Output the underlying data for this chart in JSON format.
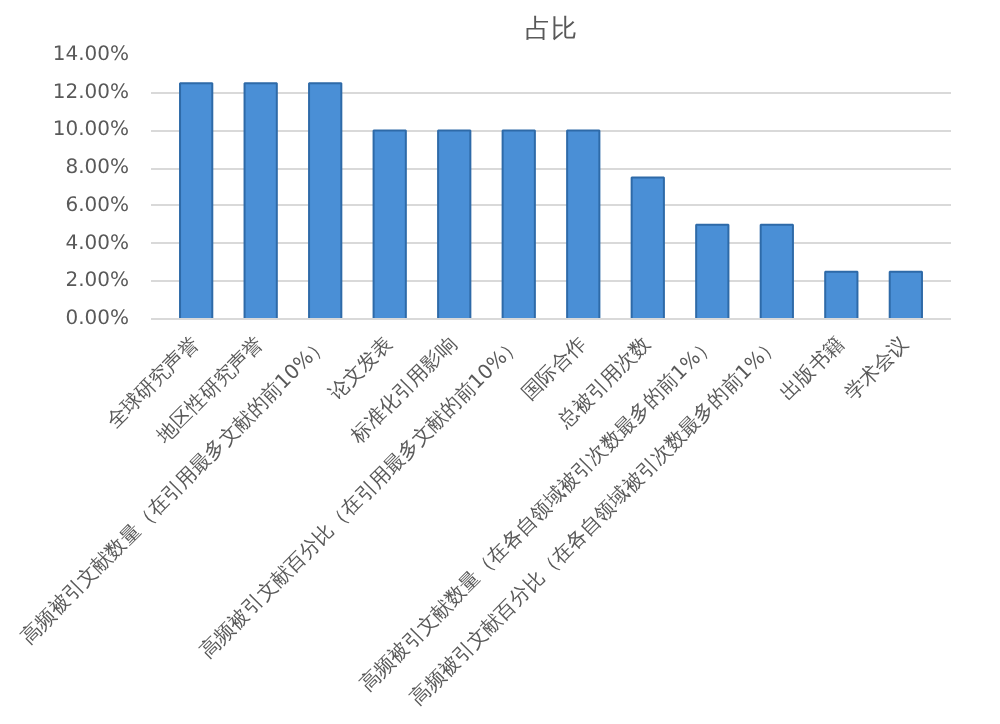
{
  "chart_data": {
    "type": "bar",
    "title": "占比",
    "categories": [
      "全球研究声誉",
      "地区性研究声誉",
      "高频被引文献数量（在引用最多文献的前10%）",
      "论文发表",
      "标准化引用影响",
      "高频被引文献百分比（在引用最多文献的前10%）",
      "国际合作",
      "总被引用次数",
      "高频被引文献数量（在各自领域被引次数最多的前1%）",
      "高频被引文献百分比（在各自领域被引次数最多的前1%）",
      "出版书籍",
      "学术会议"
    ],
    "values": [
      12.5,
      12.5,
      12.5,
      10,
      10,
      10,
      10,
      7.5,
      5,
      5,
      2.5,
      2.5
    ],
    "color": "#4a8fd6",
    "ylim": [
      0,
      14
    ],
    "yticks": [
      {
        "value": 0,
        "label": "0.00%"
      },
      {
        "value": 2,
        "label": "2.00%"
      },
      {
        "value": 4,
        "label": "4.00%"
      },
      {
        "value": 6,
        "label": "6.00%"
      },
      {
        "value": 8,
        "label": "8.00%"
      },
      {
        "value": 10,
        "label": "10.00%"
      },
      {
        "value": 12,
        "label": "12.00%"
      },
      {
        "value": 14,
        "label": "14.00%"
      }
    ],
    "grid": "y"
  }
}
